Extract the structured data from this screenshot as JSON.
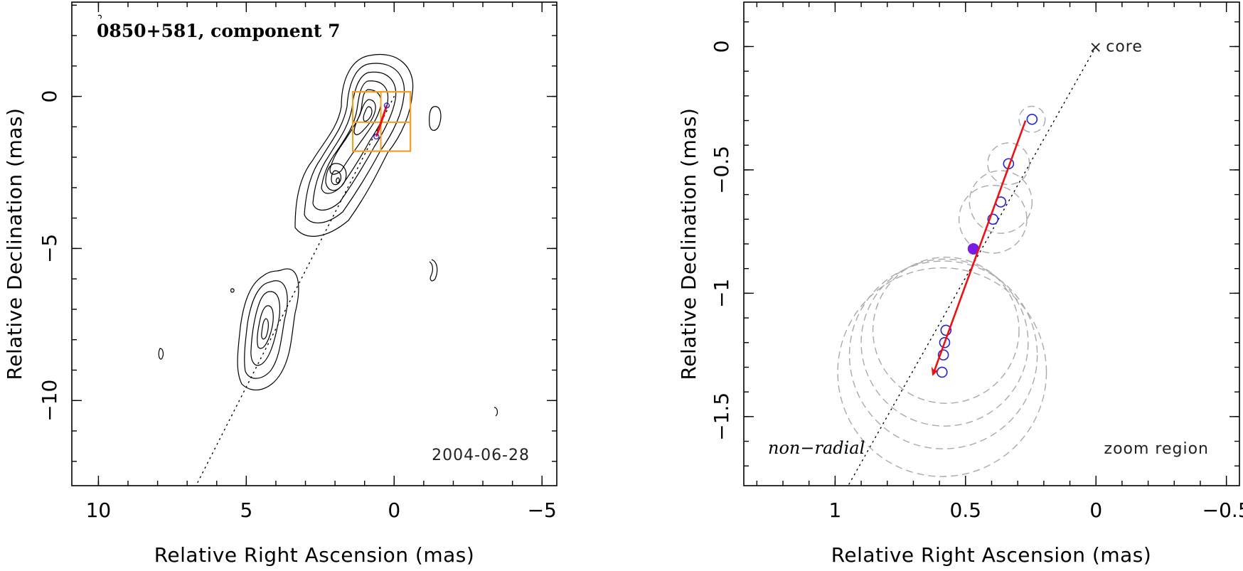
{
  "colors": {
    "trajectory": "#ee1111",
    "component": "#2222dd",
    "mean_position": "#7a1be6",
    "zoom_box": "#f0a020",
    "fit_circles": "#aaaaaa"
  },
  "chart_data": [
    {
      "type": "scatter",
      "panel": "left",
      "title": "0850+581, component 7",
      "date": "2004-06-28",
      "xlabel": "Relative Right Ascension (mas)",
      "ylabel": "Relative Declination (mas)",
      "xlim": [
        10.9,
        -5.5
      ],
      "ylim": [
        -12.8,
        3.1
      ],
      "x_ticks": [
        10,
        5,
        0,
        -5
      ],
      "y_ticks": [
        0,
        -5,
        -10
      ],
      "x_tick_labels": [
        "10",
        "5",
        "0",
        "−5"
      ],
      "y_tick_labels": [
        "0",
        "−5",
        "−10"
      ],
      "x_minor": 1,
      "y_minor": 1,
      "ridge_line": {
        "angle_deg": 208,
        "from": [
          0,
          0
        ],
        "to": [
          6.7,
          -12.8
        ]
      },
      "zoom_region": {
        "x": [
          -0.55,
          1.4
        ],
        "y": [
          -1.8,
          0.15
        ],
        "grid_x": [
          0.45
        ],
        "grid_y": [
          -0.85
        ]
      },
      "trajectory": {
        "x": [
          0.25,
          0.6
        ],
        "y": [
          -0.3,
          -1.32
        ]
      },
      "component_points": {
        "x": [
          0.25,
          0.6
        ],
        "y": [
          -0.3,
          -1.32
        ]
      }
    },
    {
      "type": "scatter",
      "panel": "right",
      "xlabel": "Relative Right Ascension (mas)",
      "ylabel": "Relative Declination (mas)",
      "xlim": [
        1.35,
        -0.55
      ],
      "ylim": [
        -1.78,
        0.18
      ],
      "x_ticks": [
        1,
        0.5,
        0,
        -0.5
      ],
      "y_ticks": [
        0,
        -0.5,
        -1,
        -1.5
      ],
      "x_tick_labels": [
        "1",
        "0.5",
        "0",
        "−0.5"
      ],
      "y_tick_labels": [
        "0",
        "−0.5",
        "−1",
        "−1.5"
      ],
      "x_minor": 0.1,
      "y_minor": 0.1,
      "core_label": "core",
      "core_marker": "×",
      "ridge_line": {
        "angle_deg": 208,
        "from": [
          0,
          0
        ],
        "to": [
          0.95,
          -1.78
        ]
      },
      "components": {
        "x": [
          0.245,
          0.335,
          0.365,
          0.395,
          0.575,
          0.58,
          0.585,
          0.59
        ],
        "y": [
          -0.295,
          -0.475,
          -0.63,
          -0.7,
          -1.15,
          -1.2,
          -1.25,
          -1.32
        ]
      },
      "fit_circle_radii": [
        0.05,
        0.08,
        0.12,
        0.13,
        0.28,
        0.32,
        0.36,
        0.4
      ],
      "mean_position": {
        "x": 0.47,
        "y": -0.82
      },
      "trajectory": {
        "x": [
          0.27,
          0.625
        ],
        "y": [
          -0.3,
          -1.33
        ]
      },
      "motion_label": "non−radial",
      "region_label": "zoom region"
    }
  ]
}
